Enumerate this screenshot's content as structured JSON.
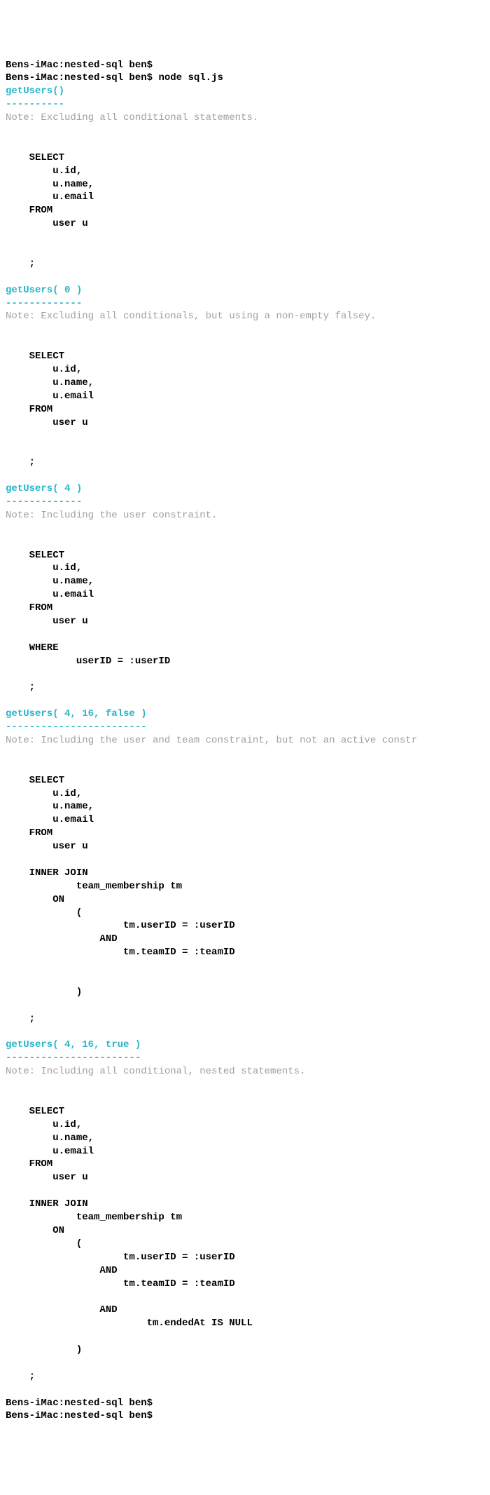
{
  "colors": {
    "heading": "#28b4c8",
    "note": "#a0a0a0",
    "text": "#000000",
    "background": "#ffffff"
  },
  "prompt_line1": "Bens-iMac:nested-sql ben$",
  "prompt_line2_prefix": "Bens-iMac:nested-sql ben$ ",
  "prompt_line2_cmd": "node sql.js",
  "sections": [
    {
      "heading": "getUsers()",
      "underline": "----------",
      "note": "Note: Excluding all conditional statements.",
      "sql": "\n\n    SELECT\n        u.id,\n        u.name,\n        u.email\n    FROM\n        user u\n    \n    \n    ;\n"
    },
    {
      "heading": "getUsers( 0 )",
      "underline": "-------------",
      "note": "Note: Excluding all conditionals, but using a non-empty falsey.",
      "sql": "\n\n    SELECT\n        u.id,\n        u.name,\n        u.email\n    FROM\n        user u\n    \n    \n    ;\n"
    },
    {
      "heading": "getUsers( 4 )",
      "underline": "-------------",
      "note": "Note: Including the user constraint.",
      "sql": "\n\n    SELECT\n        u.id,\n        u.name,\n        u.email\n    FROM\n        user u\n    \n    WHERE\n            userID = :userID\n    \n    ;\n"
    },
    {
      "heading": "getUsers( 4, 16, false )",
      "underline": "------------------------",
      "note": "Note: Including the user and team constraint, but not an active constr",
      "sql": "\n\n    SELECT\n        u.id,\n        u.name,\n        u.email\n    FROM\n        user u\n    \n    INNER JOIN\n            team_membership tm\n        ON\n            (\n                    tm.userID = :userID\n                AND\n                    tm.teamID = :teamID\n                \n                \n            )\n    \n    ;\n"
    },
    {
      "heading": "getUsers( 4, 16, true )",
      "underline": "-----------------------",
      "note": "Note: Including all conditional, nested statements.",
      "sql": "\n\n    SELECT\n        u.id,\n        u.name,\n        u.email\n    FROM\n        user u\n    \n    INNER JOIN\n            team_membership tm\n        ON\n            (\n                    tm.userID = :userID\n                AND\n                    tm.teamID = :teamID\n                \n                AND\n                        tm.endedAt IS NULL\n                \n            )\n    \n    ;\n"
    }
  ],
  "trailing_prompt1": "Bens-iMac:nested-sql ben$",
  "trailing_prompt2": "Bens-iMac:nested-sql ben$"
}
